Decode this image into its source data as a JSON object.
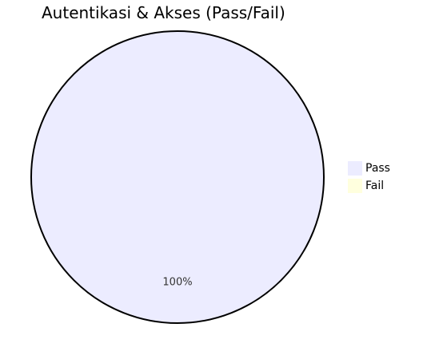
{
  "chart_data": {
    "type": "pie",
    "title": "Autentikasi & Akses (Pass/Fail)",
    "categories": [
      "Pass",
      "Fail"
    ],
    "values": [
      100,
      0
    ],
    "value_labels": [
      "100%"
    ],
    "colors": [
      "#ececff",
      "#ffffde"
    ],
    "outline_color": "#000000",
    "legend_position": "right"
  }
}
